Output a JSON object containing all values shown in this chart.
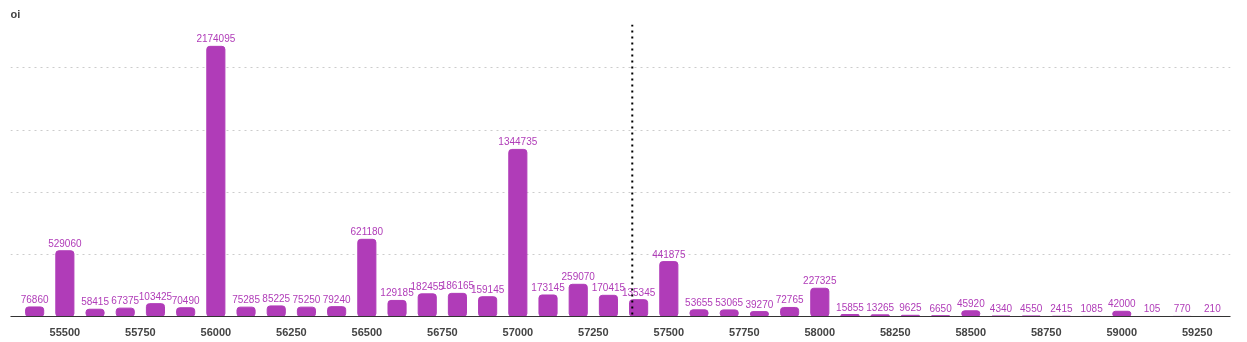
{
  "chart_data": {
    "type": "bar",
    "title": "oi",
    "x": [
      55400,
      55500,
      55600,
      55700,
      55800,
      55900,
      56000,
      56100,
      56200,
      56300,
      56400,
      56500,
      56600,
      56700,
      56800,
      56900,
      57000,
      57100,
      57200,
      57300,
      57400,
      57500,
      57600,
      57700,
      57800,
      57900,
      58000,
      58100,
      58200,
      58300,
      58400,
      58500,
      58600,
      58700,
      58800,
      58900,
      59000,
      59100,
      59200,
      59300
    ],
    "values": [
      76860,
      529060,
      58415,
      67375,
      103425,
      70490,
      2174095,
      75285,
      85225,
      75250,
      79240,
      621180,
      129185,
      182455,
      186165,
      159145,
      1344735,
      173145,
      259070,
      170415,
      135345,
      441875,
      53655,
      53065,
      39270,
      72765,
      227325,
      15855,
      13265,
      9625,
      6650,
      45920,
      4340,
      4550,
      2415,
      1085,
      42000,
      105,
      770,
      210
    ],
    "color": "#b03cb8",
    "data_labels": true,
    "xlim": [
      55320,
      59360
    ],
    "xticks": [
      55500,
      55750,
      56000,
      56250,
      56500,
      56750,
      57000,
      57250,
      57500,
      57750,
      58000,
      58250,
      58500,
      58750,
      59000,
      59250
    ],
    "ylim": [
      0,
      2350000
    ],
    "yticks": [
      {
        "value": 0,
        "label": null
      },
      {
        "value": 500000,
        "label": null
      },
      {
        "value": 1000000,
        "label": null
      },
      {
        "value": 1500000,
        "label": null
      },
      {
        "value": 2000000,
        "label": null
      }
    ],
    "tick_labels": "x",
    "grid": "y",
    "ref_lines": [
      {
        "axis": "x",
        "value": 57379,
        "line_style": "dotted",
        "color": "#000000"
      }
    ]
  }
}
